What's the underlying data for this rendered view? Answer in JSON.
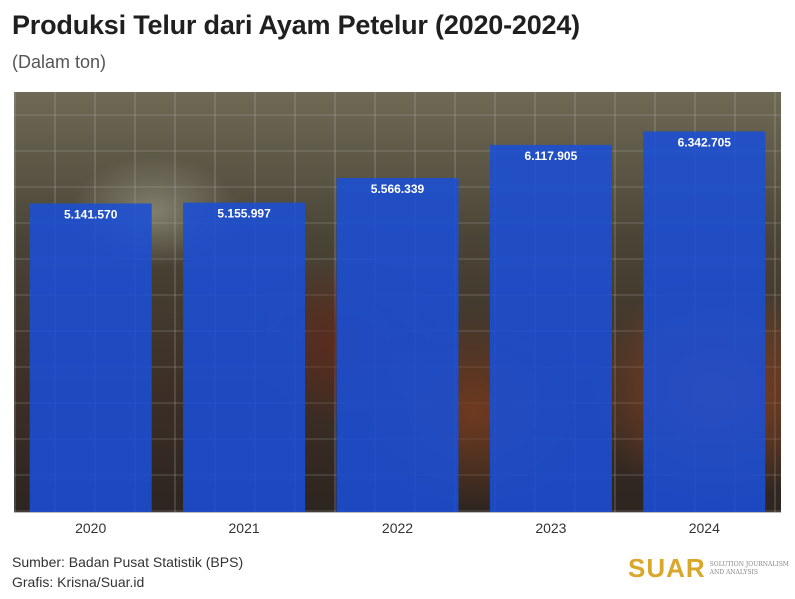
{
  "header": {
    "title": "Produksi Telur dari Ayam Petelur (2020-2024)",
    "subtitle": "(Dalam ton)"
  },
  "footer": {
    "source": "Sumber: Badan Pusat Statistik (BPS)",
    "credit": "Grafis: Krisna/Suar.id"
  },
  "logo": {
    "word": "SUAR",
    "tagline": "SOLUTION JOURNALISM AND ANALYSIS"
  },
  "colors": {
    "bar": "#1a4fd6",
    "logo": "#d9a72a"
  },
  "chart_data": {
    "type": "bar",
    "title": "Produksi Telur dari Ayam Petelur (2020-2024)",
    "subtitle": "(Dalam ton)",
    "xlabel": "",
    "ylabel": "",
    "categories": [
      "2020",
      "2021",
      "2022",
      "2023",
      "2024"
    ],
    "values": [
      5141570,
      5155997,
      5566339,
      6117905,
      6342705
    ],
    "value_labels": [
      "5.141.570",
      "5.155.997",
      "5.566.339",
      "6.117.905",
      "6.342.705"
    ],
    "ylim": [
      0,
      7000000
    ],
    "grid": false,
    "legend": "none"
  }
}
